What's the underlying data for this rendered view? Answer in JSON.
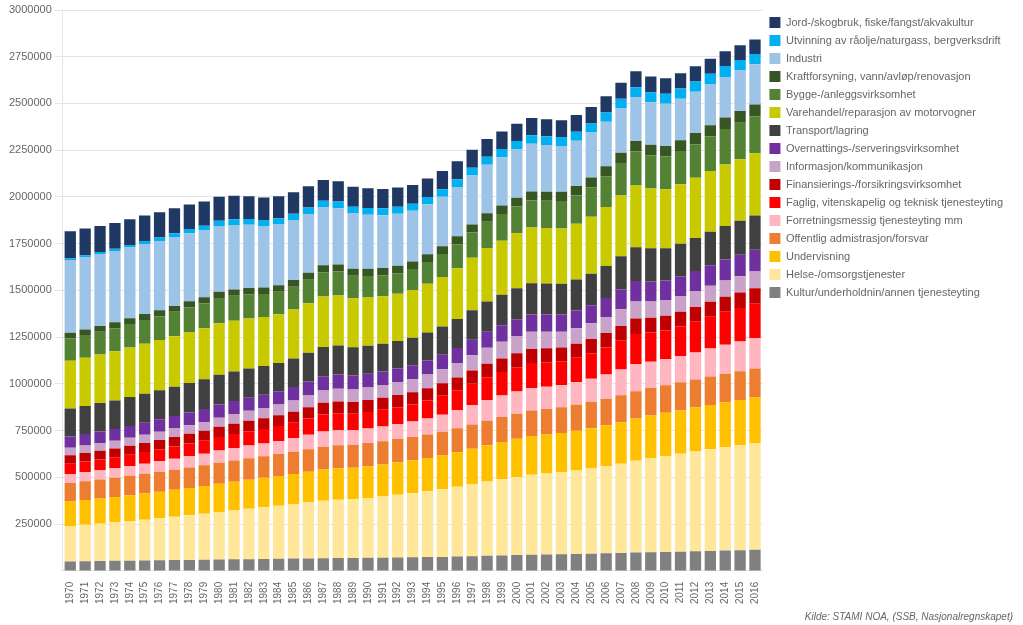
{
  "chart_data": {
    "type": "bar",
    "stacked": true,
    "grid": true,
    "legend": "right",
    "annotation": "Kilde: STAMI NOA, (SSB, Nasjonalregnskapet)",
    "categories": [
      "1970",
      "1971",
      "1972",
      "1973",
      "1974",
      "1975",
      "1976",
      "1977",
      "1978",
      "1979",
      "1980",
      "1981",
      "1982",
      "1983",
      "1984",
      "1985",
      "1986",
      "1987",
      "1988",
      "1989",
      "1990",
      "1991",
      "1992",
      "1993",
      "1994",
      "1995",
      "1996",
      "1997",
      "1998",
      "1999",
      "2000",
      "2001",
      "2002",
      "2003",
      "2004",
      "2005",
      "2006",
      "2007",
      "2008",
      "2009",
      "2010",
      "2011",
      "2012",
      "2013",
      "2014",
      "2015",
      "2016"
    ],
    "ylim": [
      0,
      3000000
    ],
    "yticks": [
      250000,
      500000,
      750000,
      1000000,
      1250000,
      1500000,
      1750000,
      2000000,
      2250000,
      2500000,
      2750000,
      3000000
    ],
    "series": [
      {
        "name": "Kultur/underholdnin/annen tjenesteyting",
        "color": "#808080",
        "values": [
          50000,
          51000,
          52000,
          53000,
          54000,
          55000,
          56000,
          57000,
          58000,
          59000,
          60000,
          61000,
          62000,
          63000,
          64000,
          65000,
          66000,
          67000,
          68000,
          68000,
          69000,
          70000,
          71000,
          72000,
          73000,
          74000,
          76000,
          78000,
          80000,
          82000,
          84000,
          86000,
          87000,
          88000,
          89000,
          91000,
          93000,
          95000,
          97000,
          99000,
          100000,
          102000,
          104000,
          106000,
          108000,
          110000,
          112000
        ]
      },
      {
        "name": "Helse-/omsorgstjenester",
        "color": "#ffe699",
        "values": [
          190000,
          195000,
          200000,
          206000,
          212000,
          218000,
          225000,
          232000,
          239000,
          246000,
          254000,
          262000,
          270000,
          277000,
          284000,
          292000,
          300000,
          308000,
          312000,
          315000,
          320000,
          327000,
          335000,
          343000,
          352000,
          362000,
          373000,
          385000,
          397000,
          408000,
          418000,
          427000,
          433000,
          439000,
          447000,
          456000,
          466000,
          478000,
          491000,
          503000,
          514000,
          524000,
          534000,
          544000,
          554000,
          563000,
          572000
        ]
      },
      {
        "name": "Undervisning",
        "color": "#ffc000",
        "values": [
          130000,
          132000,
          134000,
          136000,
          138000,
          140000,
          142000,
          144000,
          146000,
          148000,
          151000,
          153000,
          155000,
          157000,
          159000,
          161000,
          164000,
          167000,
          168000,
          168000,
          170000,
          172000,
          174000,
          176000,
          178000,
          181000,
          185000,
          190000,
          195000,
          199000,
          204000,
          208000,
          209000,
          210000,
          213000,
          216000,
          219000,
          222000,
          226000,
          229000,
          231000,
          233000,
          235000,
          237000,
          239000,
          241000,
          243000
        ]
      },
      {
        "name": "Offentlig admistrasjon/forsvar",
        "color": "#ed7d31",
        "values": [
          100000,
          101000,
          102000,
          103000,
          104000,
          106000,
          107000,
          108000,
          110000,
          111000,
          113000,
          114000,
          115000,
          116000,
          117000,
          118000,
          120000,
          122000,
          123000,
          123000,
          124000,
          124000,
          125000,
          125000,
          126000,
          127000,
          128000,
          130000,
          131000,
          133000,
          134000,
          136000,
          137000,
          138000,
          139000,
          140000,
          142000,
          144000,
          146000,
          147000,
          148000,
          149000,
          150000,
          152000,
          153000,
          154000,
          155000
        ]
      },
      {
        "name": "Forretningsmessig tjenesteyting mm",
        "color": "#ffb6c1",
        "values": [
          48000,
          49000,
          50000,
          51000,
          53000,
          54000,
          56000,
          58000,
          60000,
          62000,
          65000,
          67000,
          68000,
          68000,
          70000,
          73000,
          77000,
          81000,
          81000,
          78000,
          78000,
          79000,
          80000,
          82000,
          86000,
          91000,
          97000,
          104000,
          111000,
          115000,
          119000,
          121000,
          119000,
          117000,
          120000,
          124000,
          130000,
          138000,
          145000,
          140000,
          138000,
          141000,
          145000,
          150000,
          155000,
          158000,
          162000
        ]
      },
      {
        "name": "Faglig, vitenskapelig og teknisk tjenesteyting",
        "color": "#ff0000",
        "values": [
          55000,
          56000,
          57000,
          58000,
          60000,
          62000,
          64000,
          66000,
          68000,
          70000,
          73000,
          75000,
          77000,
          78000,
          80000,
          83000,
          87000,
          91000,
          91000,
          88000,
          88000,
          89000,
          90000,
          92000,
          96000,
          101000,
          107000,
          114000,
          121000,
          126000,
          130000,
          133000,
          131000,
          129000,
          132000,
          137000,
          144000,
          153000,
          162000,
          157000,
          155000,
          159000,
          164000,
          170000,
          176000,
          180000,
          185000
        ]
      },
      {
        "name": "Finansierings-/forsikringsvirksomhet",
        "color": "#c00000",
        "values": [
          45000,
          46000,
          47000,
          47000,
          48000,
          49000,
          50000,
          51000,
          52000,
          53000,
          54000,
          55000,
          56000,
          57000,
          58000,
          59000,
          61000,
          63000,
          63000,
          63000,
          64000,
          64000,
          65000,
          65000,
          66000,
          67000,
          68000,
          70000,
          72000,
          73000,
          75000,
          76000,
          75000,
          74000,
          75000,
          76000,
          78000,
          80000,
          82000,
          79000,
          78000,
          78000,
          79000,
          80000,
          81000,
          82000,
          83000
        ]
      },
      {
        "name": "Informasjon/kommunikasjon",
        "color": "#c8a2c8",
        "values": [
          40000,
          40000,
          41000,
          41000,
          42000,
          43000,
          44000,
          45000,
          46000,
          47000,
          49000,
          51000,
          53000,
          55000,
          57000,
          60000,
          63000,
          66000,
          68000,
          67000,
          68000,
          69000,
          70000,
          71000,
          73000,
          75000,
          78000,
          82000,
          86000,
          89000,
          92000,
          92000,
          88000,
          84000,
          83000,
          84000,
          86000,
          89000,
          91000,
          87000,
          84000,
          84000,
          85000,
          86000,
          87000,
          88000,
          89000
        ]
      },
      {
        "name": "Overnattings-/serveringsvirksomhet",
        "color": "#7030a0",
        "values": [
          60000,
          61000,
          62000,
          63000,
          64000,
          65000,
          66000,
          67000,
          68000,
          69000,
          70000,
          70000,
          70000,
          70000,
          71000,
          72000,
          74000,
          76000,
          76000,
          74000,
          73000,
          72000,
          72000,
          73000,
          75000,
          77000,
          80000,
          83000,
          86000,
          88000,
          90000,
          92000,
          92000,
          92000,
          94000,
          97000,
          101000,
          106000,
          110000,
          107000,
          105000,
          106000,
          108000,
          110000,
          112000,
          114000,
          116000
        ]
      },
      {
        "name": "Transport/lagring",
        "color": "#404040",
        "values": [
          150000,
          151000,
          152000,
          153000,
          154000,
          155000,
          156000,
          157000,
          158000,
          159000,
          160000,
          158000,
          156000,
          154000,
          152000,
          153000,
          154000,
          156000,
          155000,
          152000,
          150000,
          148000,
          147000,
          148000,
          150000,
          152000,
          155000,
          158000,
          161000,
          163000,
          165000,
          167000,
          166000,
          165000,
          166000,
          168000,
          172000,
          177000,
          181000,
          177000,
          173000,
          174000,
          176000,
          178000,
          180000,
          182000,
          184000
        ]
      },
      {
        "name": "Varehandel/reparasjon av motorvogner",
        "color": "#c9c900",
        "values": [
          255000,
          258000,
          260000,
          263000,
          265000,
          267000,
          268000,
          270000,
          272000,
          273000,
          275000,
          272000,
          268000,
          263000,
          260000,
          262000,
          265000,
          270000,
          268000,
          262000,
          258000,
          255000,
          253000,
          255000,
          260000,
          265000,
          272000,
          280000,
          287000,
          290000,
          295000,
          298000,
          297000,
          295000,
          298000,
          305000,
          315000,
          325000,
          330000,
          320000,
          315000,
          318000,
          322000,
          325000,
          328000,
          330000,
          332000
        ]
      },
      {
        "name": "Bygge-/anleggsvirksomhet",
        "color": "#548235",
        "values": [
          120000,
          121000,
          122000,
          124000,
          126000,
          127000,
          128000,
          130000,
          132000,
          133000,
          135000,
          133000,
          128000,
          122000,
          120000,
          122000,
          126000,
          130000,
          128000,
          120000,
          115000,
          112000,
          110000,
          112000,
          117000,
          122000,
          128000,
          135000,
          140000,
          142000,
          143000,
          145000,
          145000,
          147000,
          152000,
          158000,
          165000,
          175000,
          183000,
          178000,
          175000,
          177000,
          180000,
          185000,
          190000,
          195000,
          198000
        ]
      },
      {
        "name": "Kraftforsyning, vann/avløp/renovasjon",
        "color": "#375623",
        "values": [
          30000,
          30000,
          31000,
          31000,
          31000,
          32000,
          32000,
          32000,
          33000,
          33000,
          34000,
          34000,
          35000,
          35000,
          36000,
          36000,
          37000,
          37000,
          38000,
          38000,
          39000,
          39000,
          40000,
          40000,
          41000,
          42000,
          43000,
          44000,
          45000,
          46000,
          47000,
          48000,
          49000,
          50000,
          51000,
          52000,
          53000,
          54000,
          55000,
          56000,
          57000,
          58000,
          60000,
          61000,
          62000,
          63000,
          64000
        ]
      },
      {
        "name": "Industri",
        "color": "#9dc3e6",
        "values": [
          390000,
          388000,
          385000,
          382000,
          378000,
          375000,
          370000,
          368000,
          363000,
          358000,
          352000,
          345000,
          338000,
          330000,
          325000,
          320000,
          315000,
          310000,
          300000,
          295000,
          288000,
          282000,
          278000,
          272000,
          268000,
          265000,
          263000,
          261000,
          260000,
          258000,
          258000,
          255000,
          250000,
          245000,
          242000,
          240000,
          238000,
          237000,
          235000,
          228000,
          225000,
          222000,
          220000,
          218000,
          217000,
          216000,
          215000
        ]
      },
      {
        "name": "Utvinning av råolje/naturgass, bergverksdrift",
        "color": "#00b0f0",
        "values": [
          8000,
          9000,
          10000,
          12000,
          14000,
          16000,
          19000,
          21000,
          23000,
          25000,
          28000,
          30000,
          31000,
          32000,
          33000,
          34000,
          35000,
          36000,
          36000,
          36000,
          37000,
          37000,
          38000,
          38000,
          39000,
          40000,
          41000,
          42000,
          43000,
          44000,
          45000,
          46000,
          47000,
          47000,
          48000,
          49000,
          50000,
          52000,
          53000,
          53000,
          54000,
          55000,
          56000,
          57000,
          58000,
          57000,
          55000
        ]
      },
      {
        "name": "Jord-/skogbruk, fiske/fangst/akvakultur",
        "color": "#1f3864",
        "values": [
          145000,
          143000,
          140000,
          138000,
          137000,
          136000,
          135000,
          133000,
          132000,
          130000,
          128000,
          126000,
          122000,
          120000,
          118000,
          115000,
          113000,
          111000,
          109000,
          107000,
          105000,
          103000,
          102000,
          100000,
          99000,
          98000,
          97000,
          96000,
          95000,
          94000,
          93000,
          92000,
          91000,
          90000,
          89000,
          88000,
          87000,
          86000,
          85000,
          84000,
          83000,
          82000,
          81000,
          80000,
          79000,
          78000,
          77000
        ]
      }
    ]
  }
}
